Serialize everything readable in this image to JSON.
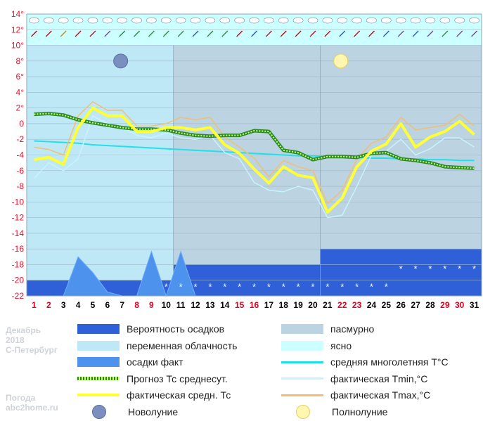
{
  "caption": {
    "month": "Декабрь",
    "year": "2018",
    "city": "С-Петербург",
    "site_title": "Погода",
    "site": "abc2home.ru"
  },
  "colors": {
    "overcast": "#bcd3e2",
    "partly": "#bfe8f7",
    "clear": "#ccffff",
    "precip_prob": "#3060d8",
    "precip_fact": "#4d93ee",
    "forecast": "#2a8a2a",
    "forecast_dots": "#ccff66",
    "avg": "#ffff33",
    "tmin": "#c8f2ff",
    "tmax": "#f0c070",
    "climate": "#22e0ea",
    "weekday": "#000000",
    "weekend": "#e00020"
  },
  "legend": [
    {
      "key": "precip_prob",
      "label": "Вероятность осадков",
      "type": "box"
    },
    {
      "key": "overcast",
      "label": "пасмурно",
      "type": "box"
    },
    {
      "key": "partly",
      "label": "переменная облачность",
      "type": "box"
    },
    {
      "key": "clear",
      "label": "ясно",
      "type": "box"
    },
    {
      "key": "precip_fact",
      "label": "осадки факт",
      "type": "box"
    },
    {
      "key": "climate",
      "label": "средняя многолетняя T°C",
      "type": "line"
    },
    {
      "key": "forecast",
      "label": "Прогноз Тс среднесут.",
      "type": "dots"
    },
    {
      "key": "tmin",
      "label": "фактическая Tmin,°C",
      "type": "line"
    },
    {
      "key": "avg",
      "label": "фактическая средн. Тс",
      "type": "thick"
    },
    {
      "key": "tmax",
      "label": "фактическая Tmax,°C",
      "type": "line"
    },
    {
      "key": "new_moon",
      "label": "Новолуние",
      "type": "moon-new"
    },
    {
      "key": "full_moon",
      "label": "Полнолуние",
      "type": "moon-full"
    }
  ],
  "chart_data": {
    "type": "line",
    "ylim": [
      -22,
      14
    ],
    "yticks": [
      "14°",
      "12°",
      "10°",
      "8°",
      "6°",
      "4°",
      "2°",
      "0",
      "-2",
      "-4",
      "-6",
      "-8",
      "-10",
      "-12",
      "-14",
      "-16",
      "-18",
      "-20",
      "-22"
    ],
    "x": [
      "1",
      "2",
      "3",
      "4",
      "5",
      "6",
      "7",
      "8",
      "9",
      "10",
      "11",
      "12",
      "13",
      "14",
      "15",
      "16",
      "17",
      "18",
      "19",
      "20",
      "21",
      "22",
      "23",
      "24",
      "25",
      "26",
      "27",
      "28",
      "29",
      "30",
      "31"
    ],
    "weekend_days": [
      1,
      2,
      8,
      9,
      15,
      16,
      22,
      23,
      29,
      30
    ],
    "series": [
      {
        "key": "avg",
        "values": [
          -4.6,
          -4.3,
          -5.2,
          -0.5,
          2.0,
          1.0,
          1.0,
          -1.0,
          -1.0,
          -0.5,
          -0.5,
          -0.8,
          -0.5,
          -2.7,
          -3.8,
          -5.8,
          -7.6,
          -5.5,
          -6.6,
          -6.9,
          -11.3,
          -9.5,
          -5.5,
          -3.5,
          -2.6,
          0.0,
          -3.0,
          -1.7,
          -1.0,
          0.3,
          -1.4
        ]
      },
      {
        "key": "tmax",
        "values": [
          -3.0,
          -3.3,
          -4.0,
          1.0,
          2.8,
          1.7,
          1.7,
          -0.3,
          -0.3,
          0.0,
          0.8,
          0.5,
          0.8,
          -1.7,
          -3.0,
          -4.4,
          -6.8,
          -4.7,
          -5.5,
          -6.0,
          -10.2,
          -8.5,
          -4.5,
          -2.5,
          -1.7,
          0.8,
          -0.8,
          -0.5,
          -0.2,
          1.2,
          -0.3
        ]
      },
      {
        "key": "tmin",
        "values": [
          -7.0,
          -5.0,
          -6.0,
          -4.5,
          1.0,
          0.0,
          -0.3,
          -1.5,
          -1.8,
          -1.2,
          -1.8,
          -2.0,
          -1.5,
          -3.7,
          -4.5,
          -7.5,
          -8.5,
          -8.7,
          -8.0,
          -8.5,
          -12.0,
          -11.7,
          -8.0,
          -4.0,
          -3.5,
          -2.0,
          -4.0,
          -3.2,
          -1.8,
          -1.8,
          -3.0
        ]
      },
      {
        "key": "forecast",
        "values": [
          1.2,
          1.3,
          1.1,
          0.5,
          0.1,
          -0.2,
          -0.5,
          -0.7,
          -0.7,
          -0.8,
          -1.2,
          -1.5,
          -1.6,
          -1.5,
          -1.5,
          -0.9,
          -1.0,
          -3.4,
          -3.7,
          -4.6,
          -4.2,
          -4.2,
          -4.3,
          -3.8,
          -3.7,
          -4.5,
          -4.7,
          -5.0,
          -5.5,
          -5.6,
          -5.7
        ]
      },
      {
        "key": "climate",
        "values": [
          -2.2,
          -2.3,
          -2.4,
          -2.5,
          -2.7,
          -2.8,
          -2.9,
          -3.0,
          -3.1,
          -3.2,
          -3.3,
          -3.4,
          -3.5,
          -3.6,
          -3.7,
          -3.8,
          -3.9,
          -4.0,
          -4.1,
          -4.1,
          -4.2,
          -4.3,
          -4.3,
          -4.4,
          -4.4,
          -4.5,
          -4.5,
          -4.6,
          -4.6,
          -4.7,
          -4.7
        ]
      },
      {
        "key": "precip_fact",
        "values": [
          0,
          0,
          0,
          5,
          3,
          0.5,
          0,
          0,
          5.7,
          0,
          5.7,
          0,
          0,
          0,
          0,
          0,
          0,
          0,
          0,
          0,
          0,
          0,
          0,
          0,
          0,
          0,
          0,
          0,
          0,
          0,
          0
        ]
      }
    ],
    "sky": [
      {
        "from": 1,
        "to": 10,
        "kind": "partly"
      },
      {
        "from": 11,
        "to": 20,
        "kind": "overcast"
      },
      {
        "from": 21,
        "to": 31,
        "kind": "overcast"
      }
    ],
    "precip_prob": [
      {
        "from": 1,
        "to": 10,
        "level": 2
      },
      {
        "from": 11,
        "to": 20,
        "level": 4
      },
      {
        "from": 21,
        "to": 31,
        "level": 6
      }
    ],
    "moons": [
      {
        "day": 7,
        "kind": "new"
      },
      {
        "day": 22,
        "kind": "full"
      }
    ]
  }
}
